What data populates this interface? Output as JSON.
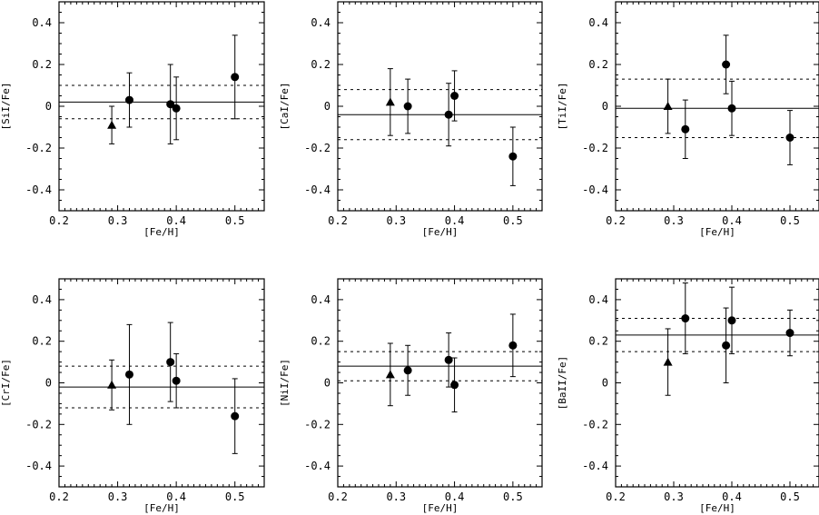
{
  "chart_data": [
    {
      "type": "scatter",
      "xlabel": "[Fe/H]",
      "ylabel": "[SiI/Fe]",
      "xlim": [
        0.2,
        0.55
      ],
      "ylim": [
        -0.5,
        0.5
      ],
      "xticks": [
        "0.2",
        "0.3",
        "0.4",
        "0.5"
      ],
      "yticks": [
        "-0.4",
        "-0.2",
        "0",
        "0.2",
        "0.4"
      ],
      "mean": 0.02,
      "band": [
        -0.06,
        0.1
      ],
      "points": [
        {
          "x": 0.29,
          "y": -0.09,
          "err": 0.09,
          "marker": "triangle"
        },
        {
          "x": 0.32,
          "y": 0.03,
          "err": 0.13,
          "marker": "circle"
        },
        {
          "x": 0.39,
          "y": 0.01,
          "err": 0.19,
          "marker": "circle"
        },
        {
          "x": 0.4,
          "y": -0.01,
          "err": 0.15,
          "marker": "circle"
        },
        {
          "x": 0.5,
          "y": 0.14,
          "err": 0.2,
          "marker": "circle"
        }
      ]
    },
    {
      "type": "scatter",
      "xlabel": "[Fe/H]",
      "ylabel": "[CaI/Fe]",
      "xlim": [
        0.2,
        0.55
      ],
      "ylim": [
        -0.5,
        0.5
      ],
      "xticks": [
        "0.2",
        "0.3",
        "0.4",
        "0.5"
      ],
      "yticks": [
        "-0.4",
        "-0.2",
        "0",
        "0.2",
        "0.4"
      ],
      "mean": -0.04,
      "band": [
        -0.16,
        0.08
      ],
      "points": [
        {
          "x": 0.29,
          "y": 0.02,
          "err": 0.16,
          "marker": "triangle"
        },
        {
          "x": 0.32,
          "y": 0.0,
          "err": 0.13,
          "marker": "circle"
        },
        {
          "x": 0.39,
          "y": -0.04,
          "err": 0.15,
          "marker": "circle"
        },
        {
          "x": 0.4,
          "y": 0.05,
          "err": 0.12,
          "marker": "circle"
        },
        {
          "x": 0.5,
          "y": -0.24,
          "err": 0.14,
          "marker": "circle"
        }
      ]
    },
    {
      "type": "scatter",
      "xlabel": "[Fe/H]",
      "ylabel": "[TiI/Fe]",
      "xlim": [
        0.2,
        0.55
      ],
      "ylim": [
        -0.5,
        0.5
      ],
      "xticks": [
        "0.2",
        "0.3",
        "0.4",
        "0.5"
      ],
      "yticks": [
        "-0.4",
        "-0.2",
        "0",
        "0.2",
        "0.4"
      ],
      "mean": -0.01,
      "band": [
        -0.15,
        0.13
      ],
      "points": [
        {
          "x": 0.29,
          "y": 0.0,
          "err": 0.13,
          "marker": "triangle"
        },
        {
          "x": 0.32,
          "y": -0.11,
          "err": 0.14,
          "marker": "circle"
        },
        {
          "x": 0.39,
          "y": 0.2,
          "err": 0.14,
          "marker": "circle"
        },
        {
          "x": 0.4,
          "y": -0.01,
          "err": 0.13,
          "marker": "circle"
        },
        {
          "x": 0.5,
          "y": -0.15,
          "err": 0.13,
          "marker": "circle"
        }
      ]
    },
    {
      "type": "scatter",
      "xlabel": "[Fe/H]",
      "ylabel": "[CrI/Fe]",
      "xlim": [
        0.2,
        0.55
      ],
      "ylim": [
        -0.5,
        0.5
      ],
      "xticks": [
        "0.2",
        "0.3",
        "0.4",
        "0.5"
      ],
      "yticks": [
        "-0.4",
        "-0.2",
        "0",
        "0.2",
        "0.4"
      ],
      "mean": -0.02,
      "band": [
        -0.12,
        0.08
      ],
      "points": [
        {
          "x": 0.29,
          "y": -0.01,
          "err": 0.12,
          "marker": "triangle"
        },
        {
          "x": 0.32,
          "y": 0.04,
          "err": 0.24,
          "marker": "circle"
        },
        {
          "x": 0.39,
          "y": 0.1,
          "err": 0.19,
          "marker": "circle"
        },
        {
          "x": 0.4,
          "y": 0.01,
          "err": 0.13,
          "marker": "circle"
        },
        {
          "x": 0.5,
          "y": -0.16,
          "err": 0.18,
          "marker": "circle"
        }
      ]
    },
    {
      "type": "scatter",
      "xlabel": "[Fe/H]",
      "ylabel": "[NiI/Fe]",
      "xlim": [
        0.2,
        0.55
      ],
      "ylim": [
        -0.5,
        0.5
      ],
      "xticks": [
        "0.2",
        "0.3",
        "0.4",
        "0.5"
      ],
      "yticks": [
        "-0.4",
        "-0.2",
        "0",
        "0.2",
        "0.4"
      ],
      "mean": 0.08,
      "band": [
        0.01,
        0.15
      ],
      "points": [
        {
          "x": 0.29,
          "y": 0.04,
          "err": 0.15,
          "marker": "triangle"
        },
        {
          "x": 0.32,
          "y": 0.06,
          "err": 0.12,
          "marker": "circle"
        },
        {
          "x": 0.39,
          "y": 0.11,
          "err": 0.13,
          "marker": "circle"
        },
        {
          "x": 0.4,
          "y": -0.01,
          "err": 0.13,
          "marker": "circle"
        },
        {
          "x": 0.5,
          "y": 0.18,
          "err": 0.15,
          "marker": "circle"
        }
      ]
    },
    {
      "type": "scatter",
      "xlabel": "[Fe/H]",
      "ylabel": "[BaII/Fe]",
      "xlim": [
        0.2,
        0.55
      ],
      "ylim": [
        -0.5,
        0.5
      ],
      "xticks": [
        "0.2",
        "0.3",
        "0.4",
        "0.5"
      ],
      "yticks": [
        "-0.4",
        "-0.2",
        "0",
        "0.2",
        "0.4"
      ],
      "mean": 0.23,
      "band": [
        0.15,
        0.31
      ],
      "points": [
        {
          "x": 0.29,
          "y": 0.1,
          "err": 0.16,
          "marker": "triangle"
        },
        {
          "x": 0.32,
          "y": 0.31,
          "err": 0.17,
          "marker": "circle"
        },
        {
          "x": 0.39,
          "y": 0.18,
          "err": 0.18,
          "marker": "circle"
        },
        {
          "x": 0.4,
          "y": 0.3,
          "err": 0.16,
          "marker": "circle"
        },
        {
          "x": 0.5,
          "y": 0.24,
          "err": 0.11,
          "marker": "circle"
        }
      ]
    }
  ]
}
